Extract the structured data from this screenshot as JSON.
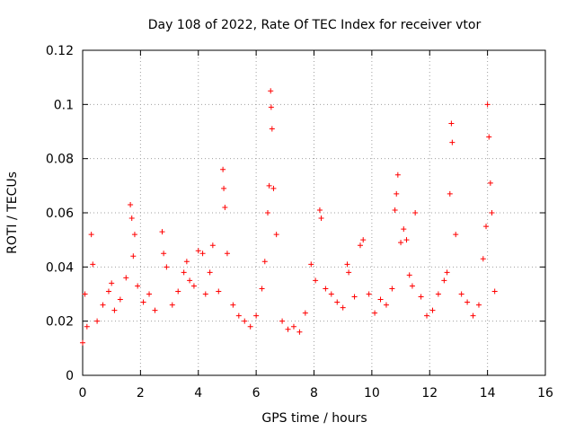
{
  "chart_data": {
    "type": "scatter",
    "title": "Day 108 of 2022, Rate Of TEC Index for receiver vtor",
    "xlabel": "GPS time / hours",
    "ylabel": "ROTI / TECUs",
    "xlim": [
      0,
      16
    ],
    "ylim": [
      0,
      0.12
    ],
    "xticks": [
      0,
      2,
      4,
      6,
      8,
      10,
      12,
      14,
      16
    ],
    "yticks": [
      0,
      0.02,
      0.04,
      0.06,
      0.08,
      0.1,
      0.12
    ],
    "xtick_labels": [
      "0",
      "2",
      "4",
      "6",
      "8",
      "10",
      "12",
      "14",
      "16"
    ],
    "ytick_labels": [
      "0",
      "0.02",
      "0.04",
      "0.06",
      "0.08",
      "0.1",
      "0.12"
    ],
    "grid": true,
    "marker": "plus",
    "color": "#ff0000",
    "series": [
      {
        "x": [
          0.0,
          0.08,
          0.15,
          0.3,
          0.35,
          0.5,
          0.7,
          0.9,
          1.0,
          1.1,
          1.3,
          1.5,
          1.65,
          1.7,
          1.75,
          1.8,
          1.9,
          2.1,
          2.3,
          2.5,
          2.75,
          2.8,
          2.9,
          3.1,
          3.3,
          3.5,
          3.6,
          3.7,
          3.85,
          4.0,
          4.15,
          4.25,
          4.4,
          4.5,
          4.7,
          4.85,
          4.88,
          4.92,
          5.0,
          5.2,
          5.4,
          5.6,
          5.8,
          6.0,
          6.2,
          6.3,
          6.4,
          6.45,
          6.5,
          6.52,
          6.55,
          6.6,
          6.7,
          6.9,
          7.1,
          7.3,
          7.5,
          7.7,
          7.9,
          8.05,
          8.2,
          8.25,
          8.4,
          8.6,
          8.8,
          9.0,
          9.15,
          9.2,
          9.4,
          9.6,
          9.7,
          9.9,
          10.1,
          10.3,
          10.5,
          10.7,
          10.8,
          10.85,
          10.9,
          11.0,
          11.1,
          11.2,
          11.3,
          11.4,
          11.5,
          11.7,
          11.9,
          12.1,
          12.3,
          12.5,
          12.6,
          12.7,
          12.75,
          12.78,
          12.9,
          13.1,
          13.3,
          13.5,
          13.7,
          13.85,
          13.95,
          14.0,
          14.05,
          14.1,
          14.15,
          14.25
        ],
        "y": [
          0.012,
          0.03,
          0.018,
          0.052,
          0.041,
          0.02,
          0.026,
          0.031,
          0.034,
          0.024,
          0.028,
          0.036,
          0.063,
          0.058,
          0.044,
          0.052,
          0.033,
          0.027,
          0.03,
          0.024,
          0.053,
          0.045,
          0.04,
          0.026,
          0.031,
          0.038,
          0.042,
          0.035,
          0.033,
          0.046,
          0.045,
          0.03,
          0.038,
          0.048,
          0.031,
          0.076,
          0.069,
          0.062,
          0.045,
          0.026,
          0.022,
          0.02,
          0.018,
          0.022,
          0.032,
          0.042,
          0.06,
          0.07,
          0.105,
          0.099,
          0.091,
          0.069,
          0.052,
          0.02,
          0.017,
          0.018,
          0.016,
          0.023,
          0.041,
          0.035,
          0.061,
          0.058,
          0.032,
          0.03,
          0.027,
          0.025,
          0.041,
          0.038,
          0.029,
          0.048,
          0.05,
          0.03,
          0.023,
          0.028,
          0.026,
          0.032,
          0.061,
          0.067,
          0.074,
          0.049,
          0.054,
          0.05,
          0.037,
          0.033,
          0.06,
          0.029,
          0.022,
          0.024,
          0.03,
          0.035,
          0.038,
          0.067,
          0.093,
          0.086,
          0.052,
          0.03,
          0.027,
          0.022,
          0.026,
          0.043,
          0.055,
          0.1,
          0.088,
          0.071,
          0.06,
          0.031
        ]
      }
    ]
  }
}
